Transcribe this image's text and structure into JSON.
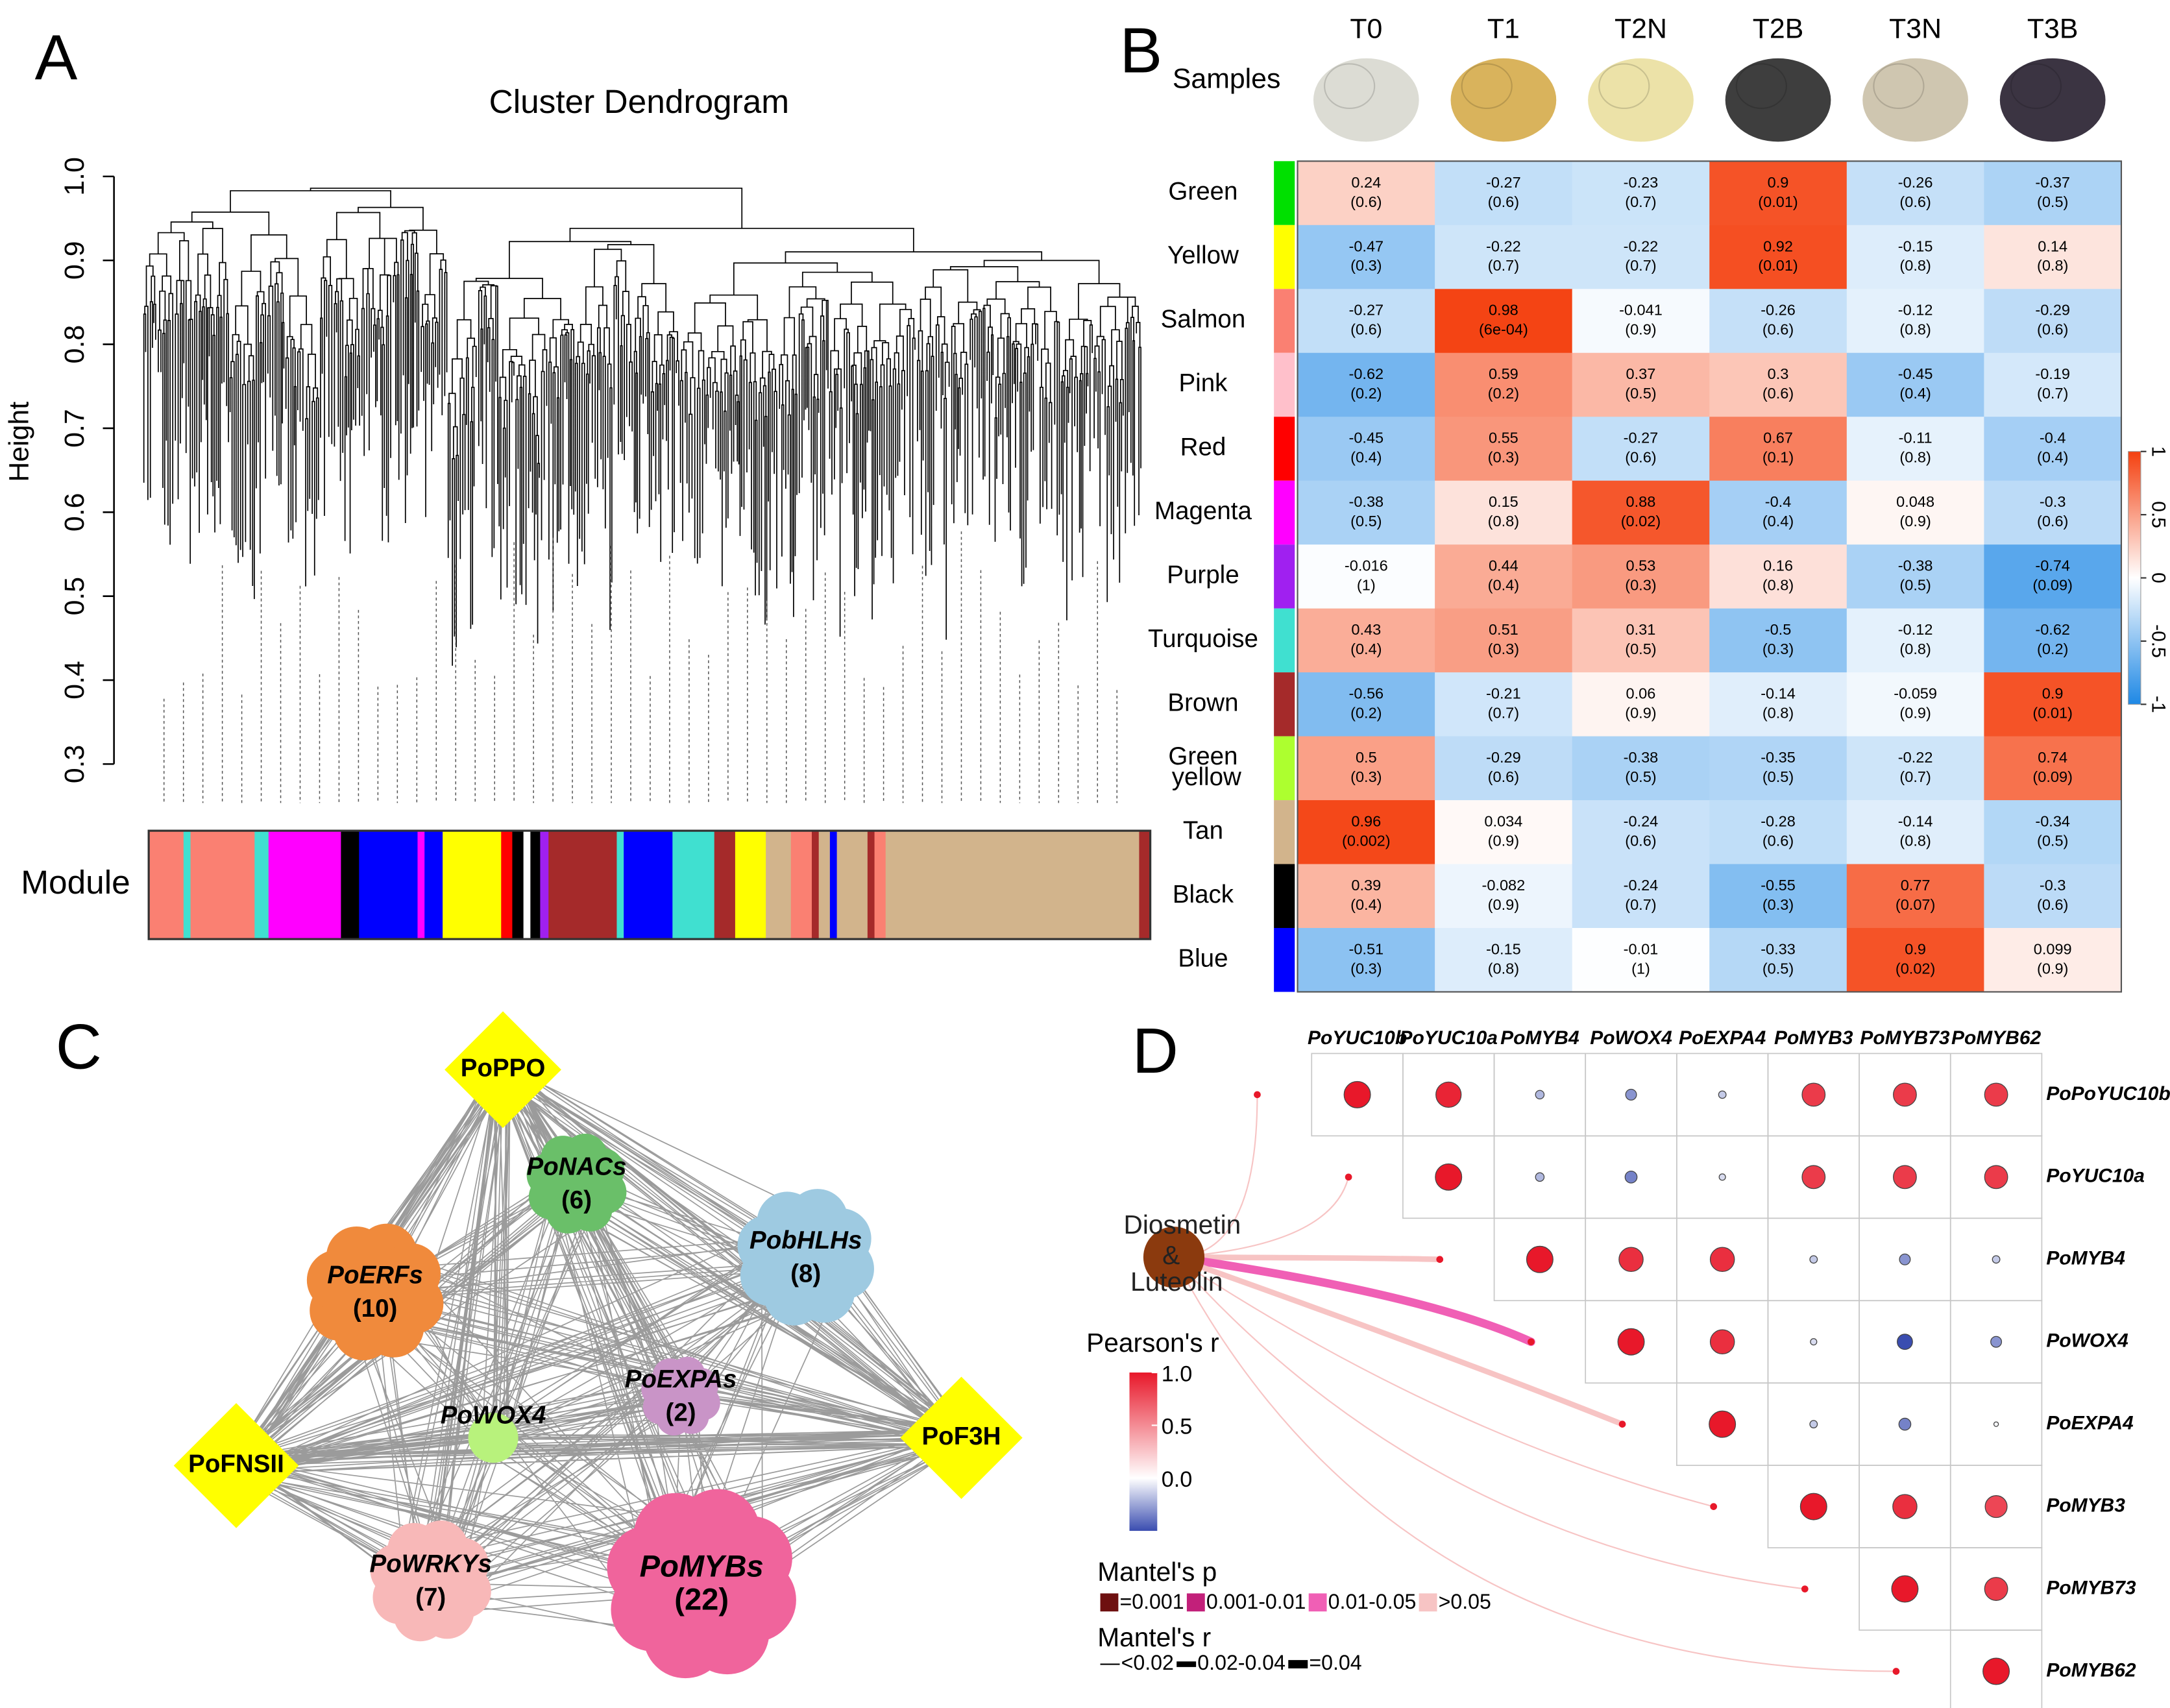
{
  "A": {
    "letter": "A",
    "title": "Cluster Dendrogram",
    "ylabel": "Height",
    "module_label": "Module",
    "ylim": [
      0.3,
      1.0
    ],
    "yticks": [
      0.3,
      0.4,
      0.5,
      0.6,
      0.7,
      0.8,
      0.9,
      {
        "value": 1,
        "label": "1.0"
      }
    ],
    "module_bar": [
      {
        "color": "#fa8072",
        "span": 25
      },
      {
        "color": "#40e0d0",
        "span": 5
      },
      {
        "color": "#fa8072",
        "span": 46
      },
      {
        "color": "#40e0d0",
        "span": 10
      },
      {
        "color": "#ff00ff",
        "span": 52
      },
      {
        "color": "#000000",
        "span": 13
      },
      {
        "color": "#0000ff",
        "span": 42
      },
      {
        "color": "#ff00ff",
        "span": 5
      },
      {
        "color": "#0000ff",
        "span": 13
      },
      {
        "color": "#ffff00",
        "span": 42
      },
      {
        "color": "#ff0000",
        "span": 8
      },
      {
        "color": "#000000",
        "span": 8
      },
      {
        "color": "#ffffff",
        "span": 5
      },
      {
        "color": "#000000",
        "span": 7
      },
      {
        "color": "#a020f0",
        "span": 6
      },
      {
        "color": "#a52a2a",
        "span": 49
      },
      {
        "color": "#40e0d0",
        "span": 5
      },
      {
        "color": "#0000ff",
        "span": 35
      },
      {
        "color": "#40e0d0",
        "span": 30
      },
      {
        "color": "#a52a2a",
        "span": 15
      },
      {
        "color": "#ffff00",
        "span": 22
      },
      {
        "color": "#d2b48c",
        "span": 18
      },
      {
        "color": "#fa8072",
        "span": 15
      },
      {
        "color": "#a52a2a",
        "span": 5
      },
      {
        "color": "#d2b48c",
        "span": 8
      },
      {
        "color": "#0000ff",
        "span": 5
      },
      {
        "color": "#d2b48c",
        "span": 22
      },
      {
        "color": "#a52a2a",
        "span": 5
      },
      {
        "color": "#fa8072",
        "span": 8
      },
      {
        "color": "#d2b48c",
        "span": 182
      },
      {
        "color": "#a52a2a",
        "span": 8
      }
    ]
  },
  "B": {
    "letter": "B",
    "samples_label": "Samples",
    "samples": [
      "T0",
      "T1",
      "T2N",
      "T2B",
      "T3N",
      "T3B"
    ],
    "modules": [
      {
        "name": "Green",
        "color": "#00e000"
      },
      {
        "name": "Yellow",
        "color": "#ffff00"
      },
      {
        "name": "Salmon",
        "color": "#fa8072"
      },
      {
        "name": "Pink",
        "color": "#ffc0cb"
      },
      {
        "name": "Red",
        "color": "#ff0000"
      },
      {
        "name": "Magenta",
        "color": "#ff00ff"
      },
      {
        "name": "Purple",
        "color": "#a020f0"
      },
      {
        "name": "Turquoise",
        "color": "#40e0d0"
      },
      {
        "name": "Brown",
        "color": "#a52a2a"
      },
      {
        "name": "Green yellow",
        "color": "#adff2f"
      },
      {
        "name": "Tan",
        "color": "#d2b48c"
      },
      {
        "name": "Black",
        "color": "#000000"
      },
      {
        "name": "Blue",
        "color": "#0000ff"
      }
    ],
    "r": [
      [
        0.24,
        -0.27,
        -0.23,
        0.9,
        -0.26,
        -0.37
      ],
      [
        -0.47,
        -0.22,
        -0.22,
        0.92,
        -0.15,
        0.14
      ],
      [
        -0.27,
        0.98,
        -0.041,
        -0.26,
        -0.12,
        -0.29
      ],
      [
        -0.62,
        0.59,
        0.37,
        0.3,
        -0.45,
        -0.19
      ],
      [
        -0.45,
        0.55,
        -0.27,
        0.67,
        -0.11,
        -0.4
      ],
      [
        -0.38,
        0.15,
        0.88,
        -0.4,
        0.048,
        -0.3
      ],
      [
        -0.016,
        0.44,
        0.53,
        0.16,
        -0.38,
        -0.74
      ],
      [
        0.43,
        0.51,
        0.31,
        -0.5,
        -0.12,
        -0.62
      ],
      [
        -0.56,
        -0.21,
        0.06,
        -0.14,
        -0.059,
        0.9
      ],
      [
        0.5,
        -0.29,
        -0.38,
        -0.35,
        -0.22,
        0.74
      ],
      [
        0.96,
        0.034,
        -0.24,
        -0.28,
        -0.14,
        -0.34
      ],
      [
        0.39,
        -0.082,
        -0.24,
        -0.55,
        0.77,
        -0.3
      ],
      [
        -0.51,
        -0.15,
        -0.01,
        -0.33,
        0.9,
        0.099
      ]
    ],
    "p": [
      [
        "(0.6)",
        "(0.6)",
        "(0.7)",
        "(0.01)",
        "(0.6)",
        "(0.5)"
      ],
      [
        "(0.3)",
        "(0.7)",
        "(0.7)",
        "(0.01)",
        "(0.8)",
        "(0.8)"
      ],
      [
        "(0.6)",
        "(6e-04)",
        "(0.9)",
        "(0.6)",
        "(0.8)",
        "(0.6)"
      ],
      [
        "(0.2)",
        "(0.2)",
        "(0.5)",
        "(0.6)",
        "(0.4)",
        "(0.7)"
      ],
      [
        "(0.4)",
        "(0.3)",
        "(0.6)",
        "(0.1)",
        "(0.8)",
        "(0.4)"
      ],
      [
        "(0.5)",
        "(0.8)",
        "(0.02)",
        "(0.4)",
        "(0.9)",
        "(0.6)"
      ],
      [
        "(1)",
        "(0.4)",
        "(0.3)",
        "(0.8)",
        "(0.5)",
        "(0.09)"
      ],
      [
        "(0.4)",
        "(0.3)",
        "(0.5)",
        "(0.3)",
        "(0.8)",
        "(0.2)"
      ],
      [
        "(0.2)",
        "(0.7)",
        "(0.9)",
        "(0.8)",
        "(0.9)",
        "(0.01)"
      ],
      [
        "(0.3)",
        "(0.6)",
        "(0.5)",
        "(0.5)",
        "(0.7)",
        "(0.09)"
      ],
      [
        "(0.002)",
        "(0.9)",
        "(0.6)",
        "(0.6)",
        "(0.8)",
        "(0.5)"
      ],
      [
        "(0.4)",
        "(0.9)",
        "(0.7)",
        "(0.3)",
        "(0.07)",
        "(0.6)"
      ],
      [
        "(0.3)",
        "(0.8)",
        "(1)",
        "(0.5)",
        "(0.02)",
        "(0.9)"
      ]
    ],
    "clim": [
      -1,
      1
    ],
    "cticks": [
      1,
      0.5,
      0,
      -0.5,
      -1
    ],
    "colors": [
      "#1e88e5",
      "#ffffff",
      "#f4400f"
    ]
  },
  "C": {
    "letter": "C",
    "nodes": [
      {
        "label": "PoPPO",
        "shape": "diamond",
        "color": "#ffff00"
      },
      {
        "label": "PoNACs",
        "count": "(6)",
        "shape": "cloud",
        "color": "#6abf69"
      },
      {
        "label": "PobHLHs",
        "count": "(8)",
        "shape": "cloud",
        "color": "#9ecae1"
      },
      {
        "label": "PoERFs",
        "count": "(10)",
        "shape": "cloud",
        "color": "#f08a3c"
      },
      {
        "label": "PoEXPAs",
        "count": "(2)",
        "shape": "cloud",
        "color": "#c994c7"
      },
      {
        "label": "PoWOX4",
        "shape": "circle",
        "color": "#b8f27c"
      },
      {
        "label": "PoFNSII",
        "shape": "diamond",
        "color": "#ffff00"
      },
      {
        "label": "PoF3H",
        "shape": "diamond",
        "color": "#ffff00"
      },
      {
        "label": "PoWRKYs",
        "count": "(7)",
        "shape": "cloud",
        "color": "#f8b8b8"
      },
      {
        "label": "PoMYBs",
        "count": "(22)",
        "shape": "cloud",
        "color": "#f0649c"
      }
    ]
  },
  "D": {
    "letter": "D",
    "columns": [
      "PoYUC10b",
      "PoYUC10a",
      "PoMYB4",
      "PoWOX4",
      "PoEXPA4",
      "PoMYB3",
      "PoMYB73",
      "PoMYB62"
    ],
    "rows": [
      "PoPoYUC10b",
      "PoYUC10a",
      "PoMYB4",
      "PoWOX4",
      "PoEXPA4",
      "PoMYB3",
      "PoMYB73",
      "PoMYB62"
    ],
    "r": [
      [
        1,
        0.95,
        -0.2,
        -0.3,
        -0.15,
        0.85,
        0.85,
        0.85
      ],
      [
        null,
        1,
        -0.2,
        -0.35,
        -0.1,
        0.85,
        0.85,
        0.85
      ],
      [
        null,
        null,
        1,
        0.9,
        0.9,
        -0.15,
        -0.3,
        -0.15
      ],
      [
        null,
        null,
        null,
        1,
        0.9,
        -0.1,
        -0.5,
        -0.3
      ],
      [
        null,
        null,
        null,
        null,
        1,
        -0.15,
        -0.35,
        -0.02
      ],
      [
        null,
        null,
        null,
        null,
        null,
        1,
        0.9,
        0.8
      ],
      [
        null,
        null,
        null,
        null,
        null,
        null,
        1,
        0.85
      ],
      [
        null,
        null,
        null,
        null,
        null,
        null,
        null,
        1
      ]
    ],
    "clim": [
      -0.5,
      1
    ],
    "cticks": [
      {
        "value": 1,
        "label": "1.0"
      },
      0.5,
      {
        "value": 0,
        "label": "0.0"
      }
    ],
    "colors": [
      "#3a4db0",
      "#ffffff",
      "#e8182a"
    ],
    "legend_title": "Pearson's r",
    "source": {
      "label": [
        "Diosmetin",
        "&",
        "Luteolin"
      ],
      "color": "#8b3a0e"
    },
    "links": [
      {
        "p": ">0.05",
        "r": "<0.02"
      },
      {
        "p": ">0.05",
        "r": "<0.02"
      },
      {
        "p": ">0.05",
        "r": "0.02-0.04"
      },
      {
        "p": "0.01-0.05",
        "r": "=0.04"
      },
      {
        "p": ">0.05",
        "r": "0.02-0.04"
      },
      {
        "p": ">0.05",
        "r": "<0.02"
      },
      {
        "p": ">0.05",
        "r": "<0.02"
      },
      {
        "p": ">0.05",
        "r": "<0.02"
      }
    ],
    "mantel_p": {
      "title": "Mantel's p",
      "classes": [
        {
          "label": "=0.001",
          "color": "#6e1010"
        },
        {
          "label": "0.001-0.01",
          "color": "#c2207a"
        },
        {
          "label": "0.01-0.05",
          "color": "#f05fb5"
        },
        {
          "label": ">0.05",
          "color": "#f7c4c4"
        }
      ]
    },
    "mantel_r": {
      "title": "Mantel's r",
      "classes": [
        "<0.02",
        "0.02-0.04",
        "=0.04"
      ]
    }
  }
}
